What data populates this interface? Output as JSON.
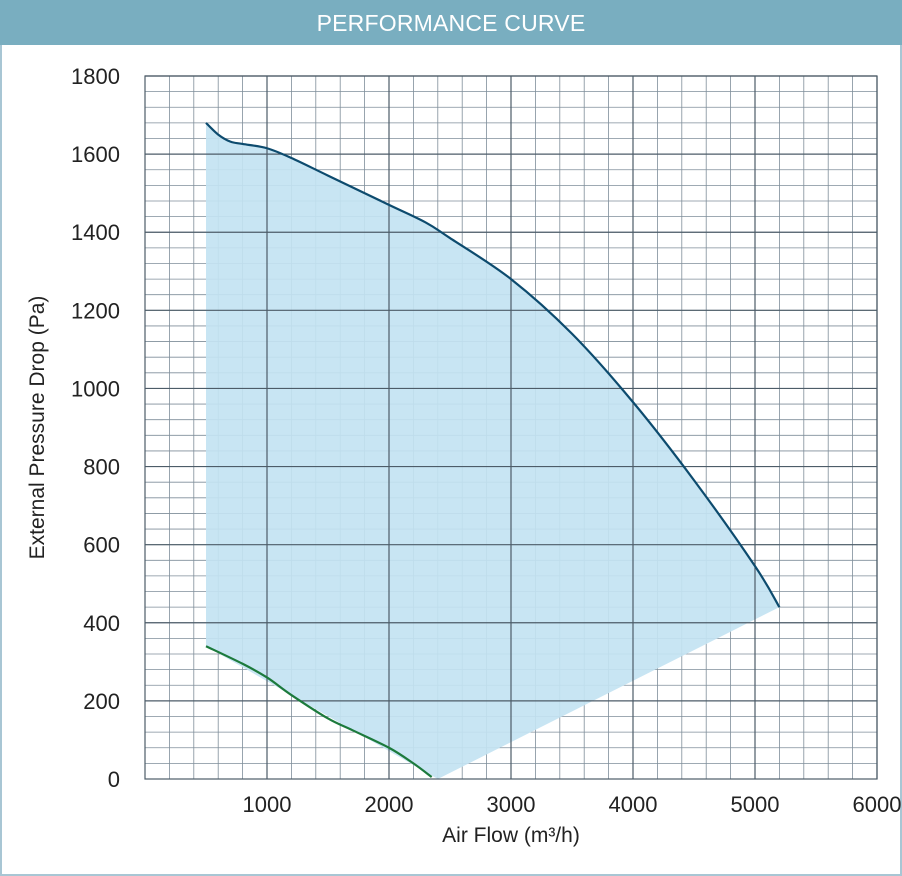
{
  "header": {
    "title": "PERFORMANCE CURVE"
  },
  "colors": {
    "header_bg": "#79aec0",
    "grid": "#7f8e9a",
    "fill": "#c3e3f2",
    "upper_curve": "#0d4b6e",
    "lower_curve": "#1c7a3c"
  },
  "chart_data": {
    "type": "area",
    "title": "PERFORMANCE CURVE",
    "xlabel": "Air Flow (m³/h)",
    "ylabel": "External Pressure Drop (Pa)",
    "xlim": [
      0,
      6000
    ],
    "ylim": [
      0,
      1800
    ],
    "x_ticks": [
      "1000",
      "2000",
      "3000",
      "4000",
      "5000",
      "6000"
    ],
    "y_ticks": [
      "0",
      "200",
      "400",
      "600",
      "800",
      "1000",
      "1200",
      "1400",
      "1600",
      "1800"
    ],
    "grid": true,
    "series": [
      {
        "role": "upper-curve",
        "x": [
          500,
          600,
          700,
          800,
          1000,
          1200,
          1500,
          2000,
          2300,
          2500,
          3000,
          3500,
          4000,
          4500,
          5000,
          5200
        ],
        "y": [
          1680,
          1650,
          1632,
          1626,
          1615,
          1590,
          1545,
          1470,
          1425,
          1385,
          1280,
          1140,
          965,
          765,
          545,
          440
        ]
      },
      {
        "role": "lower-curve",
        "x": [
          500,
          800,
          1000,
          1200,
          1500,
          1700,
          2000,
          2200,
          2350
        ],
        "y": [
          340,
          295,
          260,
          215,
          155,
          125,
          80,
          40,
          5
        ]
      },
      {
        "role": "operating-area",
        "x": [
          500,
          2400,
          5200
        ],
        "y": [
          340,
          0,
          440
        ]
      }
    ]
  }
}
